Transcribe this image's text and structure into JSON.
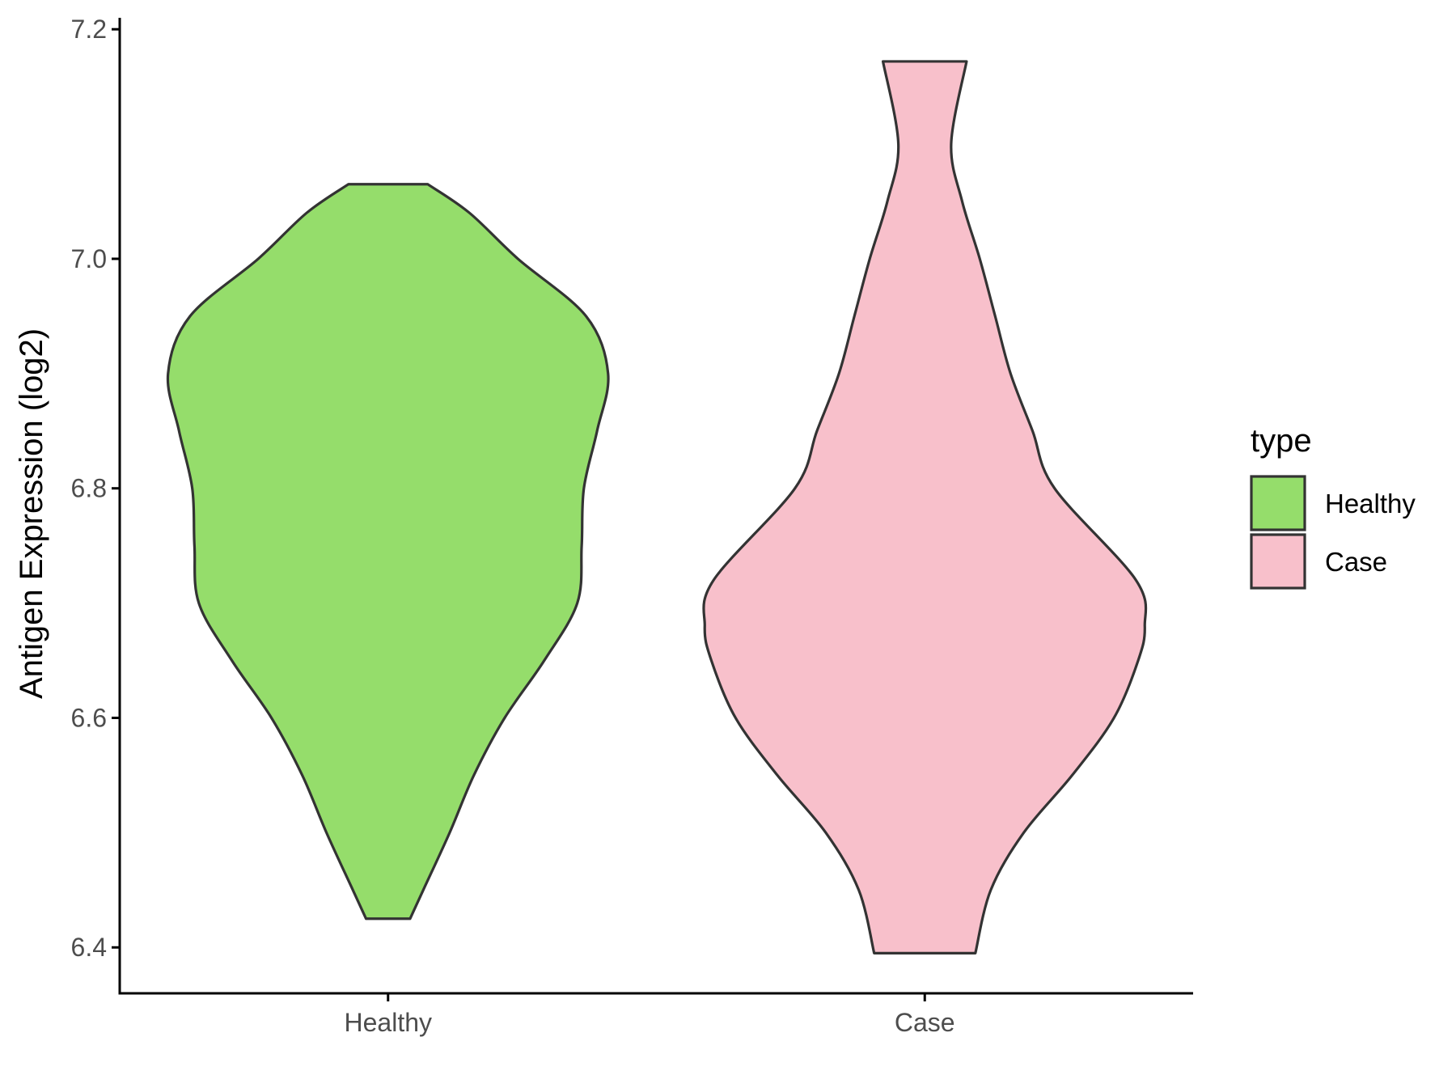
{
  "chart_data": {
    "type": "violin",
    "title": "",
    "xlabel": "",
    "ylabel": "Antigen Expression (log2)",
    "categories": [
      "Healthy",
      "Case"
    ],
    "ylim": [
      6.36,
      7.21
    ],
    "yticks": [
      6.4,
      6.6,
      6.8,
      7.0,
      7.2
    ],
    "ytick_labels": [
      "6.4",
      "6.6",
      "6.8",
      "7.0",
      "7.2"
    ],
    "grid": false,
    "legend": {
      "title": "type",
      "placement": "right",
      "entries": [
        {
          "label": "Healthy",
          "color": "#95dd6b"
        },
        {
          "label": "Case",
          "color": "#f8c0cb"
        }
      ]
    },
    "series": [
      {
        "name": "Healthy",
        "color": "#95dd6b",
        "min": 6.425,
        "max": 7.065,
        "density_profile": [
          [
            6.425,
            0.1
          ],
          [
            6.45,
            0.16
          ],
          [
            6.5,
            0.28
          ],
          [
            6.55,
            0.39
          ],
          [
            6.6,
            0.53
          ],
          [
            6.65,
            0.71
          ],
          [
            6.7,
            0.86
          ],
          [
            6.75,
            0.88
          ],
          [
            6.8,
            0.89
          ],
          [
            6.85,
            0.95
          ],
          [
            6.9,
            1.0
          ],
          [
            6.95,
            0.9
          ],
          [
            7.0,
            0.59
          ],
          [
            7.04,
            0.37
          ],
          [
            7.065,
            0.18
          ]
        ]
      },
      {
        "name": "Case",
        "color": "#f8c0cb",
        "min": 6.395,
        "max": 7.172,
        "density_profile": [
          [
            6.395,
            0.23
          ],
          [
            6.45,
            0.3
          ],
          [
            6.5,
            0.45
          ],
          [
            6.55,
            0.67
          ],
          [
            6.6,
            0.86
          ],
          [
            6.65,
            0.97
          ],
          [
            6.68,
            1.0
          ],
          [
            6.72,
            0.96
          ],
          [
            6.8,
            0.59
          ],
          [
            6.85,
            0.49
          ],
          [
            6.9,
            0.39
          ],
          [
            6.95,
            0.32
          ],
          [
            7.0,
            0.25
          ],
          [
            7.05,
            0.17
          ],
          [
            7.1,
            0.12
          ],
          [
            7.172,
            0.19
          ]
        ]
      }
    ]
  },
  "colors": {
    "outline": "#333333",
    "axis": "#000000",
    "tick_text": "#4d4d4d"
  }
}
